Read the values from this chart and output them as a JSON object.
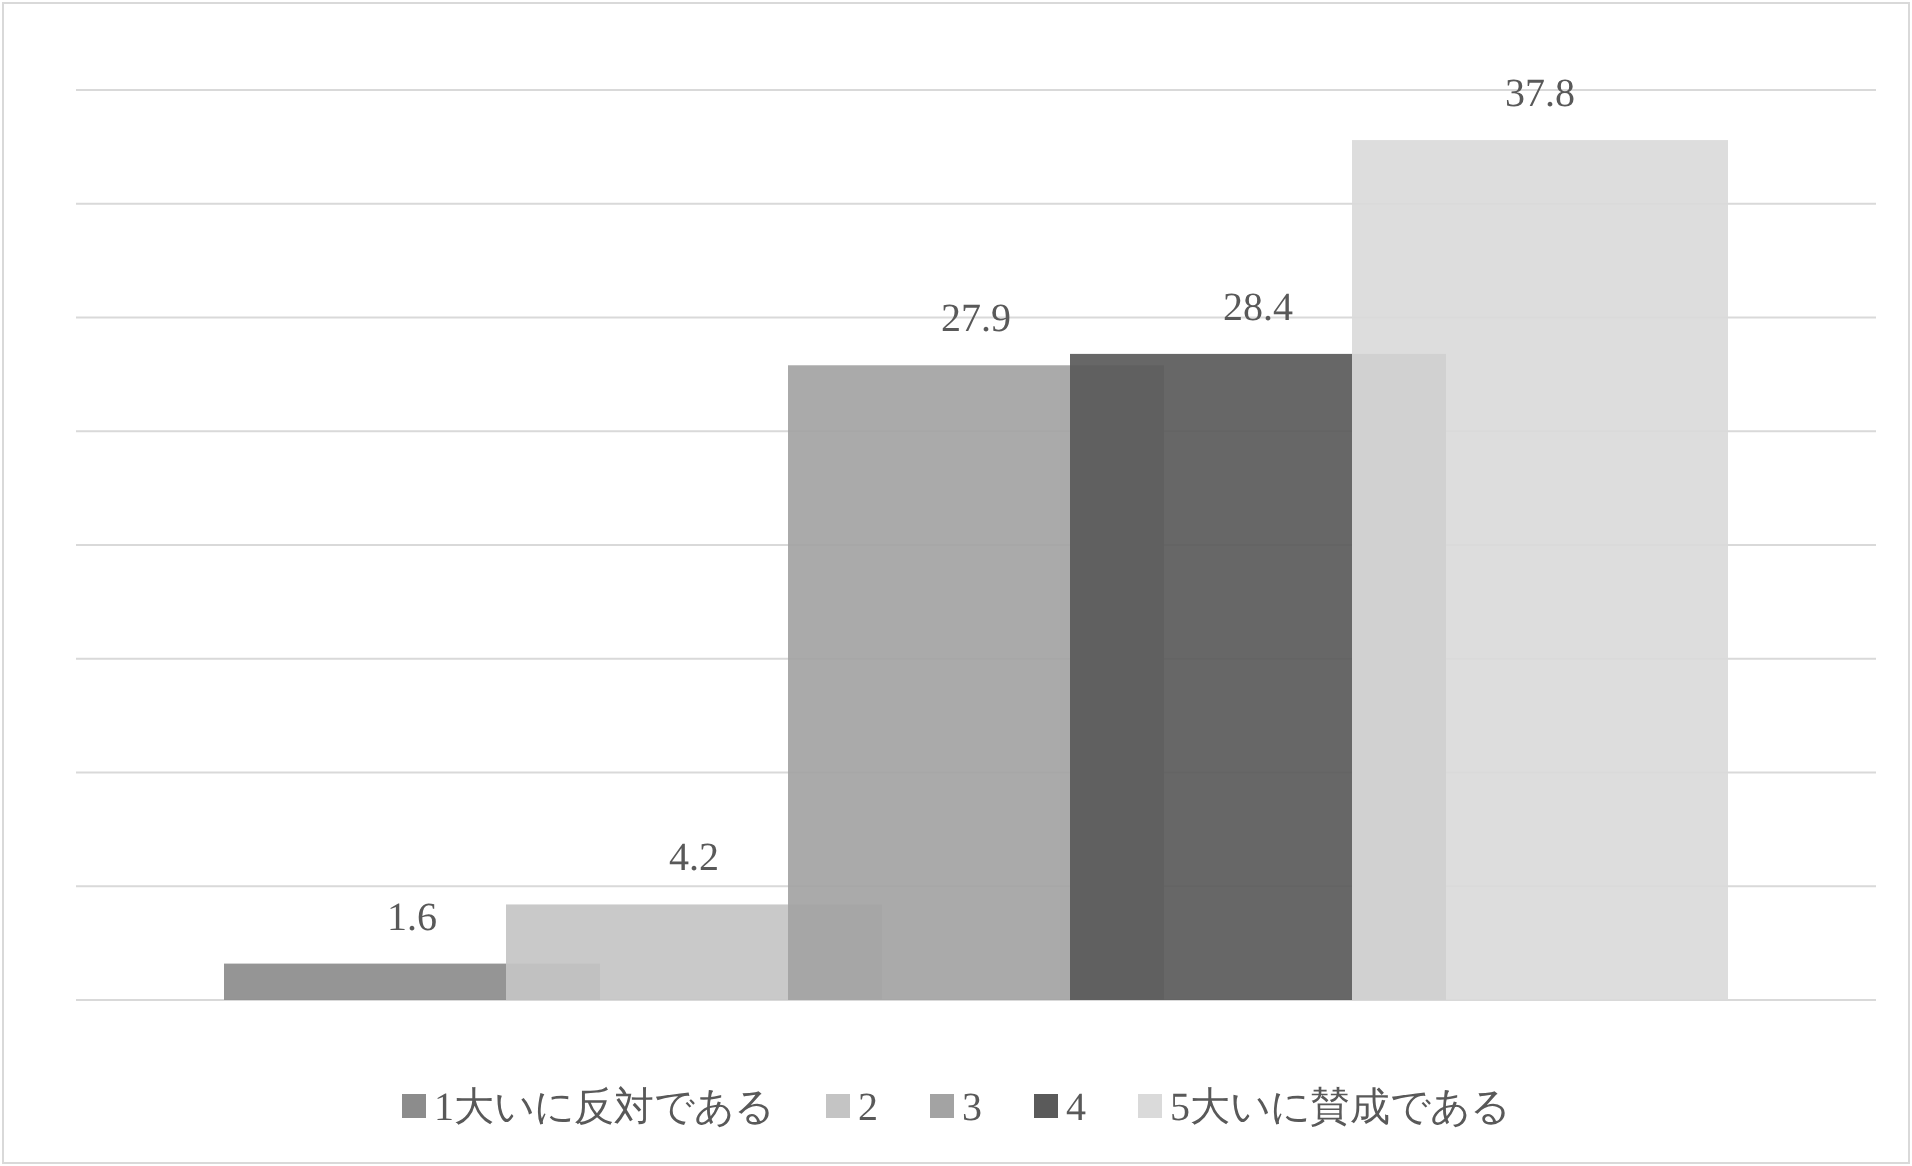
{
  "chart_data": {
    "type": "bar",
    "categories": [
      null
    ],
    "series": [
      {
        "name": "1大いに反対である",
        "color": "#8c8c8c",
        "values": [
          1.6
        ]
      },
      {
        "name": "2",
        "color": "#c4c4c4",
        "values": [
          4.2
        ]
      },
      {
        "name": "3",
        "color": "#a3a3a3",
        "values": [
          27.9
        ]
      },
      {
        "name": "4",
        "color": "#5a5a5a",
        "values": [
          28.4
        ]
      },
      {
        "name": "5大いに賛成である",
        "color": "#dadada",
        "values": [
          37.8
        ]
      }
    ],
    "ylim": [
      0,
      40
    ],
    "yticks": [
      {
        "value": 0,
        "label": null
      },
      {
        "value": 5,
        "label": null
      },
      {
        "value": 10,
        "label": null
      },
      {
        "value": 15,
        "label": null
      },
      {
        "value": 20,
        "label": null
      },
      {
        "value": 25,
        "label": null
      },
      {
        "value": 30,
        "label": null
      },
      {
        "value": 35,
        "label": null
      },
      {
        "value": 40,
        "label": null
      }
    ],
    "grid": "y",
    "data_labels": true,
    "legend": "bottom"
  }
}
